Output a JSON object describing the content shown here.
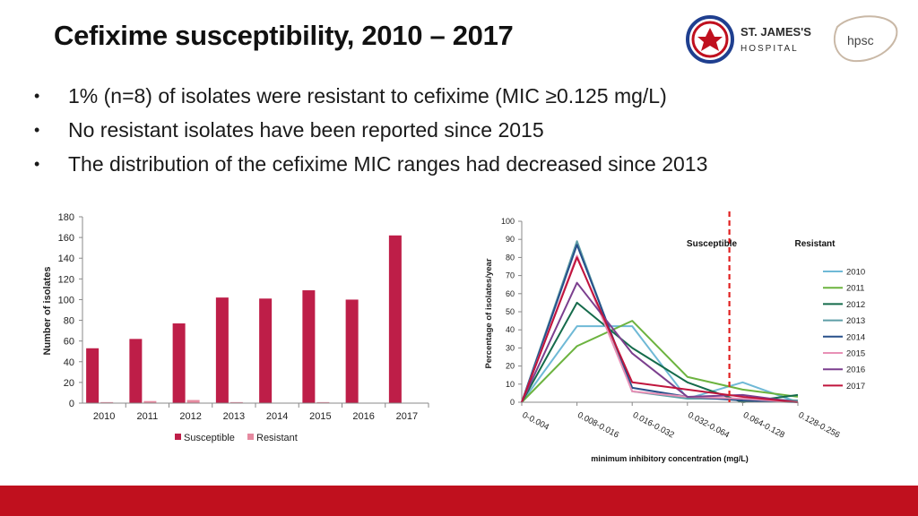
{
  "slide": {
    "title": "Cefixime susceptibility, 2010 – 2017",
    "bullets": [
      "1% (n=8) of isolates were resistant to cefixime (MIC ≥0.125 mg/L)",
      "No resistant isolates have been reported since 2015",
      "The distribution of the cefixime MIC ranges had decreased since 2013"
    ],
    "bullet_symbol": "•",
    "footer_color": "#c0101e"
  },
  "logos": {
    "hospital_line1": "ST. JAMES'S",
    "hospital_line2": "HOSPITAL",
    "hpsc": "hpsc"
  },
  "chart_data": [
    {
      "type": "bar",
      "categories": [
        "2010",
        "2011",
        "2012",
        "2013",
        "2014",
        "2015",
        "2016",
        "2017"
      ],
      "series": [
        {
          "name": "Susceptible",
          "values": [
            53,
            62,
            77,
            102,
            101,
            109,
            100,
            162
          ],
          "color": "#be1e48"
        },
        {
          "name": "Resistant",
          "values": [
            1,
            2,
            3,
            1,
            0,
            1,
            0,
            0
          ],
          "color": "#e68aa0"
        }
      ],
      "title": "",
      "xlabel": "",
      "ylabel": "Number of isolates",
      "ylim": [
        0,
        180
      ],
      "yticks": [
        0,
        20,
        40,
        60,
        80,
        100,
        120,
        140,
        160,
        180
      ],
      "grid": false,
      "legend": "bottom"
    },
    {
      "type": "line",
      "categories": [
        "0-0.004",
        "0.008-0.016",
        "0.016-0.032",
        "0.032-0.064",
        "0.064-0.128",
        "0.128-0.256"
      ],
      "series": [
        {
          "name": "2010",
          "values": [
            0,
            42,
            42,
            2,
            11,
            0
          ],
          "color": "#6fb9d6"
        },
        {
          "name": "2011",
          "values": [
            0,
            31,
            45,
            14,
            7,
            3
          ],
          "color": "#6cb33f"
        },
        {
          "name": "2012",
          "values": [
            0,
            55,
            30,
            11,
            0,
            4
          ],
          "color": "#156b4b"
        },
        {
          "name": "2013",
          "values": [
            0,
            89,
            6,
            2,
            2,
            1
          ],
          "color": "#5e9ea6"
        },
        {
          "name": "2014",
          "values": [
            0,
            87,
            8,
            3,
            1,
            0
          ],
          "color": "#274f8a"
        },
        {
          "name": "2015",
          "values": [
            0,
            81,
            6,
            3,
            2,
            0
          ],
          "color": "#e890b6"
        },
        {
          "name": "2016",
          "values": [
            0,
            66,
            27,
            3,
            4,
            0
          ],
          "color": "#7b3f8e"
        },
        {
          "name": "2017",
          "values": [
            0,
            80,
            11,
            7,
            3,
            0
          ],
          "color": "#c0143c"
        }
      ],
      "title": "",
      "xlabel": "minimum inhibitory concentration (mg/L)",
      "ylabel": "Percentage of isolates/year",
      "ylim": [
        0,
        100
      ],
      "yticks": [
        0,
        10,
        20,
        30,
        40,
        50,
        60,
        70,
        80,
        90,
        100
      ],
      "annotations": {
        "susceptible": "Susceptible",
        "resistant": "Resistant"
      },
      "breakpoint_color": "#e02020",
      "grid": false,
      "legend": "right"
    }
  ]
}
